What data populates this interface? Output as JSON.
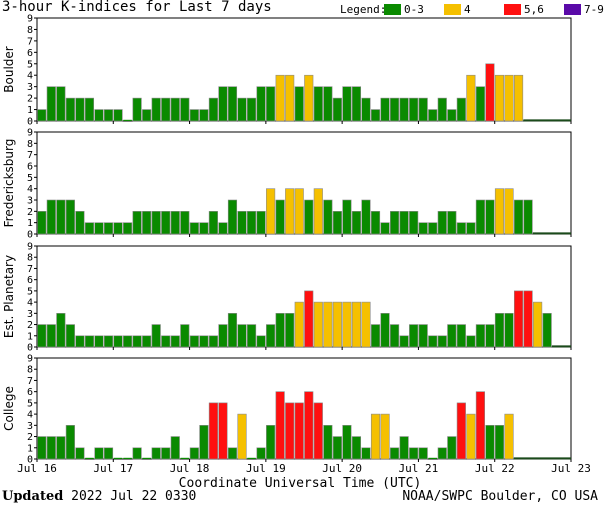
{
  "title": "3-hour K-indices for Last 7 days",
  "legend": {
    "label": "Legend:",
    "items": [
      {
        "range": "0-3",
        "color": "#0a8a00"
      },
      {
        "range": "4",
        "color": "#f5c000"
      },
      {
        "range": "5,6",
        "color": "#ff1010"
      },
      {
        "range": "7-9",
        "color": "#5a0aa8"
      }
    ]
  },
  "footer": {
    "updated_label": "Updated",
    "updated_value": "2022 Jul 22 0330",
    "credit": "NOAA/SWPC Boulder, CO USA"
  },
  "chart_data": {
    "type": "bar",
    "xlabel": "Coordinate Universal Time (UTC)",
    "x_ticks": [
      "Jul 16",
      "Jul 17",
      "Jul 18",
      "Jul 19",
      "Jul 20",
      "Jul 21",
      "Jul 22",
      "Jul 23"
    ],
    "ylim": [
      0,
      9
    ],
    "y_ticks": [
      "0",
      "1",
      "2",
      "3",
      "4",
      "5",
      "6",
      "7",
      "8",
      "9"
    ],
    "color_scale": [
      {
        "min": 0,
        "max": 3,
        "color": "#0a8a00"
      },
      {
        "min": 4,
        "max": 4,
        "color": "#f5c000"
      },
      {
        "min": 5,
        "max": 6,
        "color": "#ff1010"
      },
      {
        "min": 7,
        "max": 9,
        "color": "#5a0aa8"
      }
    ],
    "series": [
      {
        "name": "Boulder",
        "values": [
          1,
          3,
          3,
          2,
          2,
          2,
          1,
          1,
          1,
          0,
          2,
          1,
          2,
          2,
          2,
          2,
          1,
          1,
          2,
          3,
          3,
          2,
          2,
          3,
          3,
          4,
          4,
          3,
          4,
          3,
          3,
          2,
          3,
          3,
          2,
          1,
          2,
          2,
          2,
          2,
          2,
          1,
          2,
          1,
          2,
          4,
          3,
          5,
          4,
          4,
          4
        ]
      },
      {
        "name": "Fredericksburg",
        "values": [
          2,
          3,
          3,
          3,
          2,
          1,
          1,
          1,
          1,
          1,
          2,
          2,
          2,
          2,
          2,
          2,
          1,
          1,
          2,
          1,
          3,
          2,
          2,
          2,
          4,
          3,
          4,
          4,
          3,
          4,
          3,
          2,
          3,
          2,
          3,
          2,
          1,
          2,
          2,
          2,
          1,
          1,
          2,
          2,
          1,
          1,
          3,
          3,
          4,
          4,
          3,
          3
        ]
      },
      {
        "name": "Est. Planetary",
        "values": [
          2,
          2,
          3,
          2,
          1,
          1,
          1,
          1,
          1,
          1,
          1,
          1,
          2,
          1,
          1,
          2,
          1,
          1,
          1,
          2,
          3,
          2,
          2,
          1,
          2,
          3,
          3,
          4,
          5,
          4,
          4,
          4,
          4,
          4,
          4,
          2,
          3,
          2,
          1,
          2,
          2,
          1,
          1,
          2,
          2,
          1,
          2,
          2,
          3,
          3,
          5,
          5,
          4,
          3
        ]
      },
      {
        "name": "College",
        "values": [
          2,
          2,
          2,
          3,
          1,
          0,
          1,
          1,
          0,
          0,
          1,
          0,
          1,
          1,
          2,
          0,
          1,
          3,
          5,
          5,
          1,
          4,
          0,
          1,
          3,
          6,
          5,
          5,
          6,
          5,
          3,
          2,
          3,
          2,
          1,
          4,
          4,
          1,
          2,
          1,
          1,
          0,
          1,
          2,
          5,
          4,
          6,
          3,
          3,
          4
        ]
      }
    ]
  }
}
